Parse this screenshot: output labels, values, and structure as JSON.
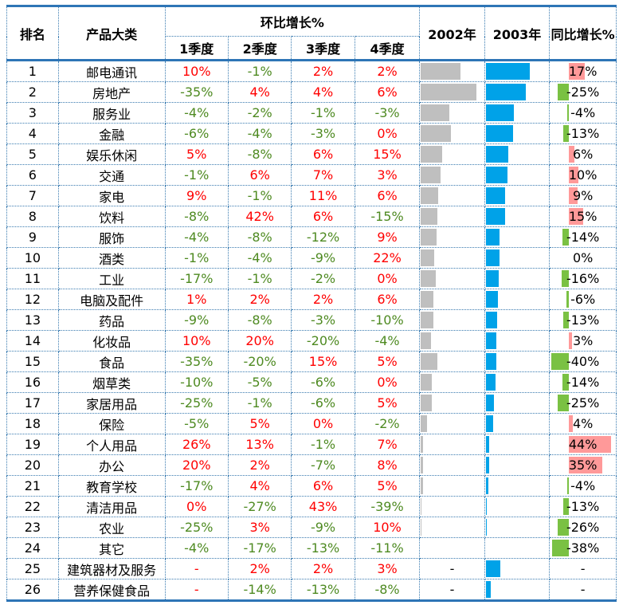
{
  "header": {
    "rank": "排名",
    "category": "产品大类",
    "qoq": "环比增长%",
    "q1": "1季度",
    "q2": "2季度",
    "q3": "3季度",
    "q4": "4季度",
    "y2002": "2002年",
    "y2003": "2003年",
    "yoy": "同比增长%"
  },
  "chart_data": {
    "type": "table",
    "columns": [
      "排名",
      "产品大类",
      "1季度",
      "2季度",
      "3季度",
      "4季度",
      "2002年",
      "2003年",
      "同比增长%"
    ],
    "bar_scale_max": 1.0,
    "yoy_scale_max": 0.45,
    "rows": [
      {
        "rank": "1",
        "name": "邮电通讯",
        "q1": "10%",
        "q2": "-1%",
        "q3": "2%",
        "q4": "2%",
        "v2002": 0.68,
        "v2003": 0.74,
        "yoy": "17%",
        "yoy_val": 0.17
      },
      {
        "rank": "2",
        "name": "房地产",
        "q1": "-35%",
        "q2": "4%",
        "q3": "4%",
        "q4": "6%",
        "v2002": 0.95,
        "v2003": 0.68,
        "yoy": "-25%",
        "yoy_val": -0.25
      },
      {
        "rank": "3",
        "name": "服务业",
        "q1": "-4%",
        "q2": "-2%",
        "q3": "-1%",
        "q4": "-3%",
        "v2002": 0.49,
        "v2003": 0.47,
        "yoy": "-4%",
        "yoy_val": -0.04
      },
      {
        "rank": "4",
        "name": "金融",
        "q1": "-6%",
        "q2": "-4%",
        "q3": "-3%",
        "q4": "0%",
        "v2002": 0.52,
        "v2003": 0.46,
        "yoy": "-13%",
        "yoy_val": -0.13
      },
      {
        "rank": "5",
        "name": "娱乐休闲",
        "q1": "5%",
        "q2": "-8%",
        "q3": "6%",
        "q4": "15%",
        "v2002": 0.36,
        "v2003": 0.38,
        "yoy": "6%",
        "yoy_val": 0.06
      },
      {
        "rank": "6",
        "name": "交通",
        "q1": "-1%",
        "q2": "6%",
        "q3": "7%",
        "q4": "3%",
        "v2002": 0.34,
        "v2003": 0.37,
        "yoy": "10%",
        "yoy_val": 0.1
      },
      {
        "rank": "7",
        "name": "家电",
        "q1": "9%",
        "q2": "-1%",
        "q3": "11%",
        "q4": "6%",
        "v2002": 0.3,
        "v2003": 0.33,
        "yoy": "9%",
        "yoy_val": 0.09
      },
      {
        "rank": "8",
        "name": "饮料",
        "q1": "-8%",
        "q2": "42%",
        "q3": "6%",
        "q4": "-15%",
        "v2002": 0.29,
        "v2003": 0.33,
        "yoy": "15%",
        "yoy_val": 0.15
      },
      {
        "rank": "9",
        "name": "服饰",
        "q1": "-4%",
        "q2": "-8%",
        "q3": "-12%",
        "q4": "9%",
        "v2002": 0.27,
        "v2003": 0.23,
        "yoy": "-14%",
        "yoy_val": -0.14
      },
      {
        "rank": "10",
        "name": "酒类",
        "q1": "-1%",
        "q2": "-4%",
        "q3": "-9%",
        "q4": "22%",
        "v2002": 0.23,
        "v2003": 0.23,
        "yoy": "0%",
        "yoy_val": 0.0
      },
      {
        "rank": "11",
        "name": "工业",
        "q1": "-17%",
        "q2": "-1%",
        "q3": "-2%",
        "q4": "0%",
        "v2002": 0.26,
        "v2003": 0.22,
        "yoy": "-16%",
        "yoy_val": -0.16
      },
      {
        "rank": "12",
        "name": "电脑及配件",
        "q1": "1%",
        "q2": "2%",
        "q3": "2%",
        "q4": "6%",
        "v2002": 0.22,
        "v2003": 0.2,
        "yoy": "-6%",
        "yoy_val": -0.06
      },
      {
        "rank": "13",
        "name": "药品",
        "q1": "-9%",
        "q2": "-8%",
        "q3": "-3%",
        "q4": "-10%",
        "v2002": 0.22,
        "v2003": 0.19,
        "yoy": "-13%",
        "yoy_val": -0.13
      },
      {
        "rank": "14",
        "name": "化妆品",
        "q1": "10%",
        "q2": "20%",
        "q3": "-20%",
        "q4": "-4%",
        "v2002": 0.17,
        "v2003": 0.17,
        "yoy": "3%",
        "yoy_val": 0.03
      },
      {
        "rank": "15",
        "name": "食品",
        "q1": "-35%",
        "q2": "-20%",
        "q3": "15%",
        "q4": "5%",
        "v2002": 0.28,
        "v2003": 0.17,
        "yoy": "-40%",
        "yoy_val": -0.4
      },
      {
        "rank": "16",
        "name": "烟草类",
        "q1": "-10%",
        "q2": "-5%",
        "q3": "-6%",
        "q4": "0%",
        "v2002": 0.19,
        "v2003": 0.16,
        "yoy": "-14%",
        "yoy_val": -0.14
      },
      {
        "rank": "17",
        "name": "家居用品",
        "q1": "-25%",
        "q2": "-1%",
        "q3": "-6%",
        "q4": "5%",
        "v2002": 0.19,
        "v2003": 0.14,
        "yoy": "-25%",
        "yoy_val": -0.25
      },
      {
        "rank": "18",
        "name": "保险",
        "q1": "-5%",
        "q2": "5%",
        "q3": "0%",
        "q4": "-2%",
        "v2002": 0.11,
        "v2003": 0.12,
        "yoy": "4%",
        "yoy_val": 0.04
      },
      {
        "rank": "19",
        "name": "个人用品",
        "q1": "26%",
        "q2": "13%",
        "q3": "-1%",
        "q4": "7%",
        "v2002": 0.04,
        "v2003": 0.06,
        "yoy": "44%",
        "yoy_val": 0.44
      },
      {
        "rank": "20",
        "name": "办公",
        "q1": "20%",
        "q2": "2%",
        "q3": "-7%",
        "q4": "8%",
        "v2002": 0.04,
        "v2003": 0.05,
        "yoy": "35%",
        "yoy_val": 0.35
      },
      {
        "rank": "21",
        "name": "教育学校",
        "q1": "-17%",
        "q2": "4%",
        "q3": "6%",
        "q4": "5%",
        "v2002": 0.04,
        "v2003": 0.04,
        "yoy": "-4%",
        "yoy_val": -0.04
      },
      {
        "rank": "22",
        "name": "清洁用品",
        "q1": "0%",
        "q2": "-27%",
        "q3": "43%",
        "q4": "-39%",
        "v2002": 0.02,
        "v2003": 0.02,
        "yoy": "-13%",
        "yoy_val": -0.13
      },
      {
        "rank": "23",
        "name": "农业",
        "q1": "-25%",
        "q2": "3%",
        "q3": "-9%",
        "q4": "10%",
        "v2002": 0.02,
        "v2003": 0.02,
        "yoy": "-26%",
        "yoy_val": -0.26
      },
      {
        "rank": "24",
        "name": "其它",
        "q1": "-4%",
        "q2": "-17%",
        "q3": "-13%",
        "q4": "-11%",
        "v2002": 0.0,
        "v2003": 0.0,
        "yoy": "-38%",
        "yoy_val": -0.38
      },
      {
        "rank": "25",
        "name": "建筑器材及服务",
        "q1": "-",
        "q2": "2%",
        "q3": "2%",
        "q4": "3%",
        "v2002": null,
        "v2003": 0.24,
        "t2002": "-",
        "yoy": "-",
        "yoy_val": null
      },
      {
        "rank": "26",
        "name": "营养保健食品",
        "q1": "-",
        "q2": "-14%",
        "q3": "-13%",
        "q4": "-8%",
        "v2002": null,
        "v2003": 0.08,
        "t2002": "-",
        "yoy": "-",
        "yoy_val": null
      }
    ]
  }
}
